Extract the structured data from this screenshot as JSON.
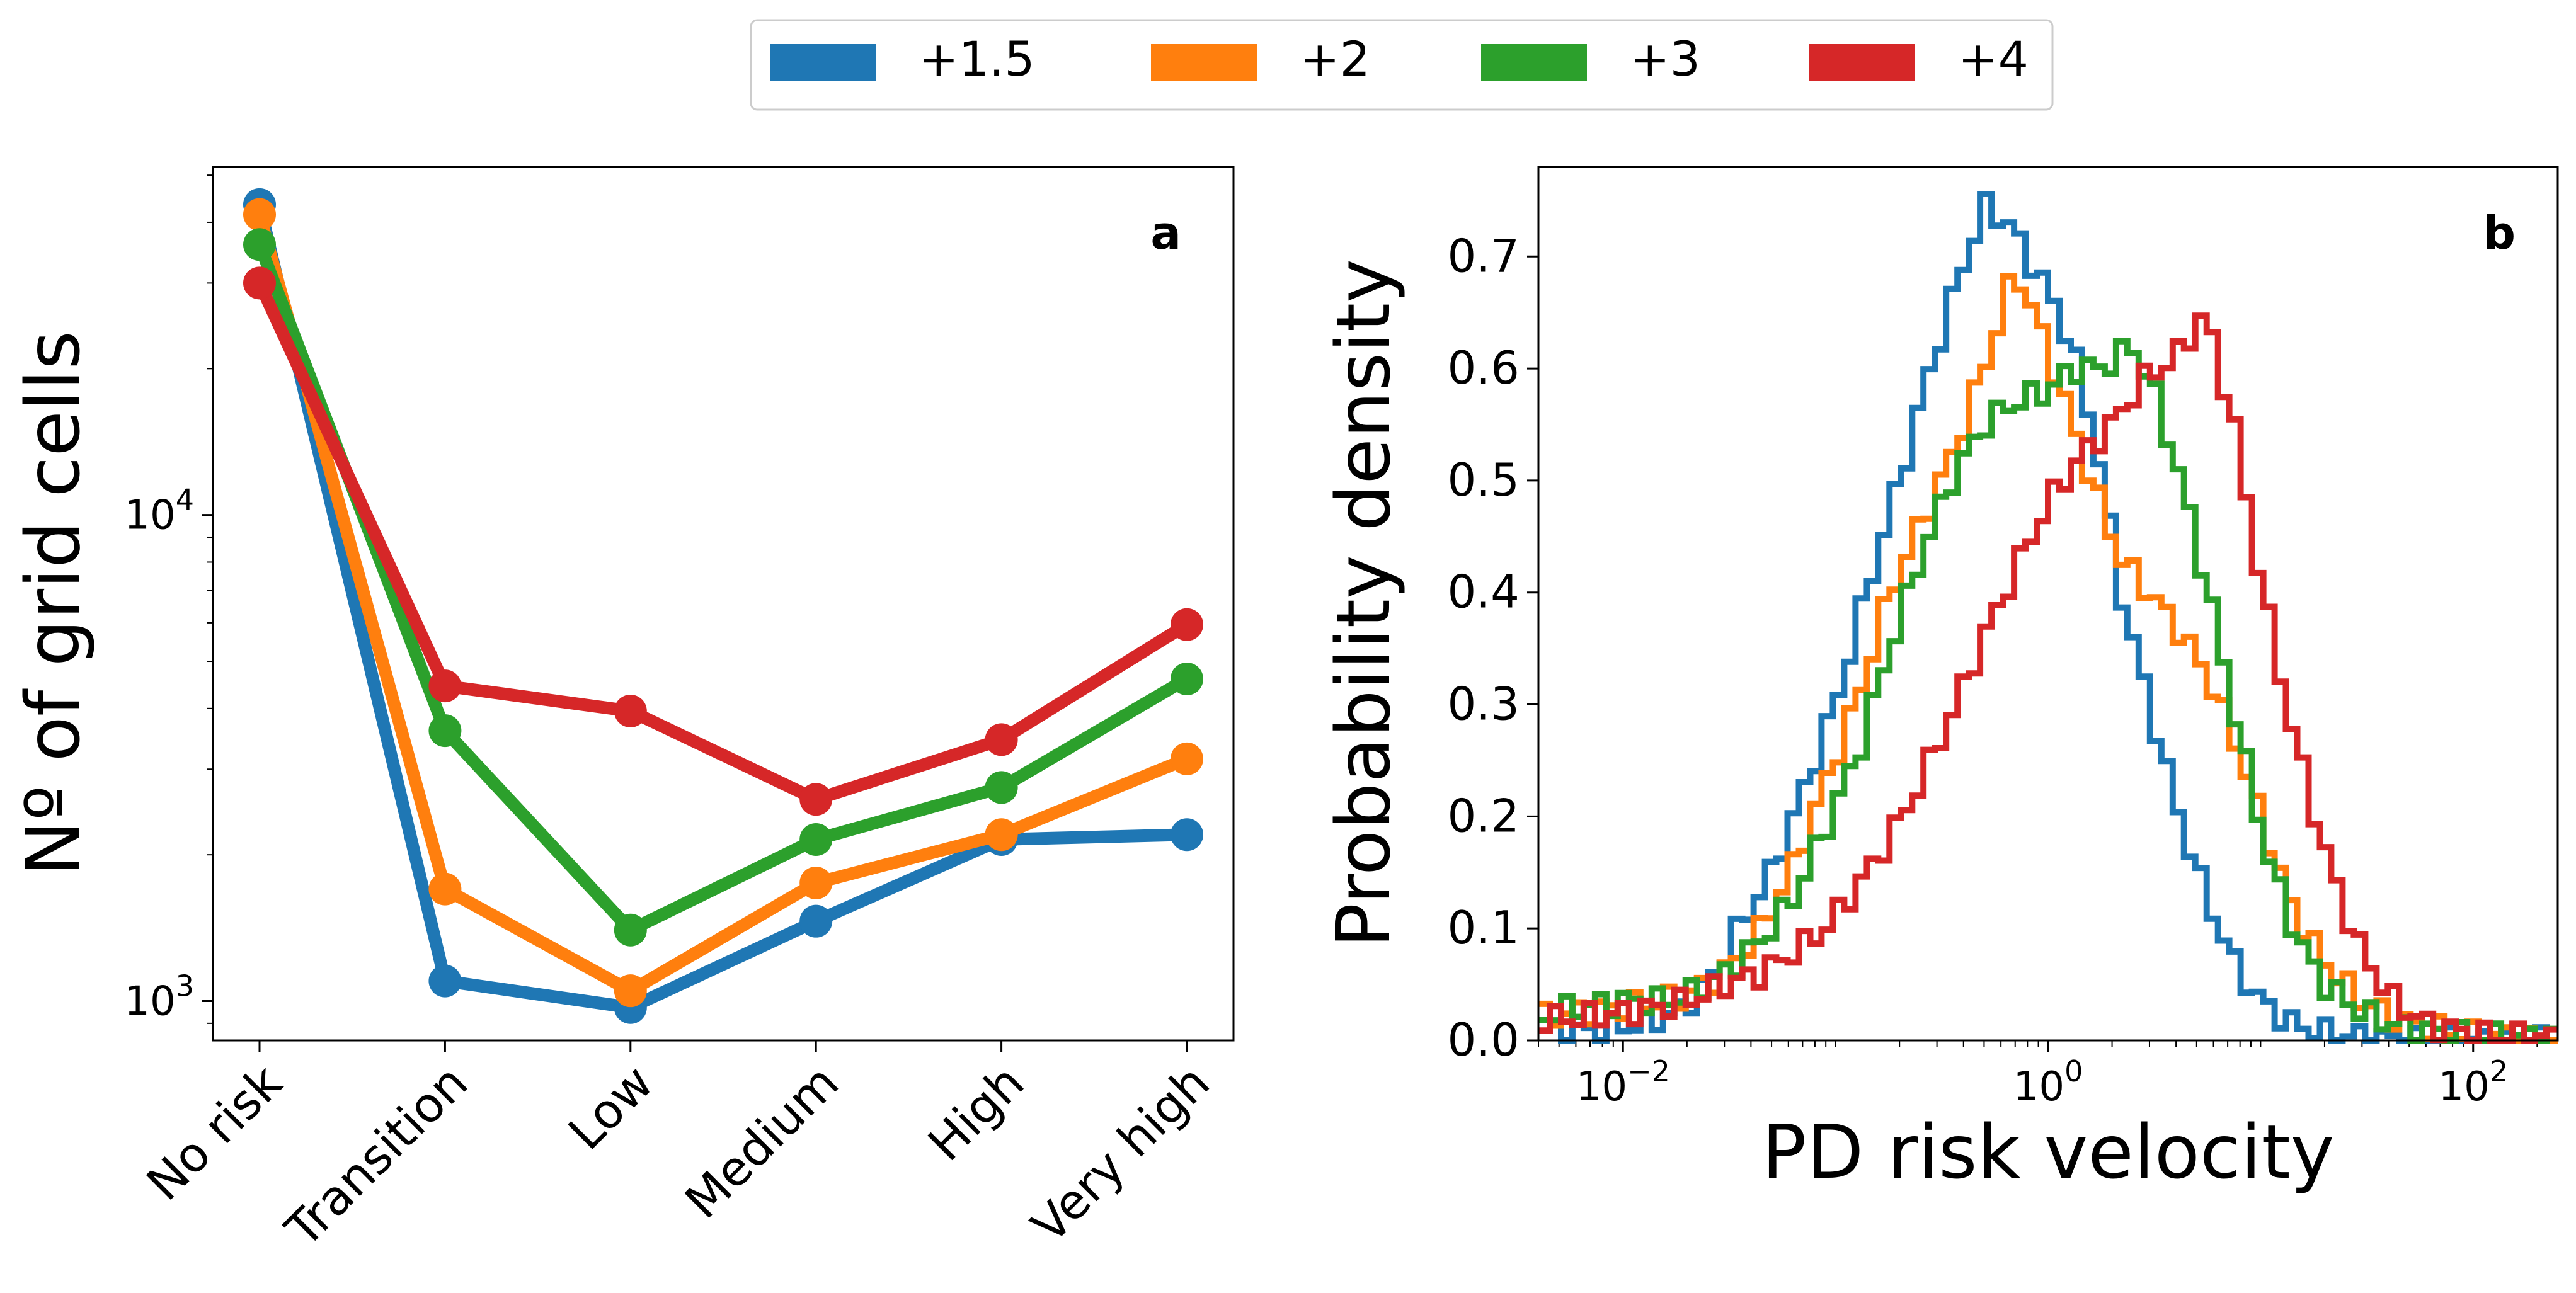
{
  "legend": {
    "entries": [
      {
        "label": "+1.5",
        "color": "#1f77b4"
      },
      {
        "label": "+2",
        "color": "#ff7f0e"
      },
      {
        "label": "+3",
        "color": "#2ca02c"
      },
      {
        "label": "+4",
        "color": "#d62728"
      }
    ]
  },
  "chart_data": [
    {
      "type": "line",
      "panel_label": "a",
      "ylabel": "Nº of grid cells",
      "xlabel": "",
      "yscale": "log",
      "ylim": [
        830,
        52000
      ],
      "categories": [
        "No risk",
        "Transition",
        "Low",
        "Medium",
        "High",
        "Very high"
      ],
      "y_ticks": [
        {
          "value": 1000,
          "base": "10",
          "exp": "3"
        },
        {
          "value": 10000,
          "base": "10",
          "exp": "4"
        }
      ],
      "series": [
        {
          "name": "+1.5",
          "color": "#1f77b4",
          "values": [
            43500,
            1100,
            970,
            1460,
            2150,
            2200
          ]
        },
        {
          "name": "+2",
          "color": "#ff7f0e",
          "values": [
            41500,
            1700,
            1050,
            1750,
            2200,
            3150
          ]
        },
        {
          "name": "+3",
          "color": "#2ca02c",
          "values": [
            36000,
            3600,
            1400,
            2150,
            2750,
            4600
          ]
        },
        {
          "name": "+4",
          "color": "#d62728",
          "values": [
            30000,
            4450,
            3950,
            2600,
            3450,
            5950
          ]
        }
      ]
    },
    {
      "type": "area",
      "style": "step histogram",
      "panel_label": "b",
      "xlabel": "PD risk velocity",
      "ylabel": "Probability density",
      "xscale": "log",
      "xlim": [
        0.004,
        250
      ],
      "ylim": [
        0,
        0.78
      ],
      "x_ticks": [
        {
          "value": 0.01,
          "base": "10",
          "exp": "−2"
        },
        {
          "value": 1,
          "base": "10",
          "exp": "0"
        },
        {
          "value": 100,
          "base": "10",
          "exp": "2"
        }
      ],
      "y_ticks": [
        0.0,
        0.1,
        0.2,
        0.3,
        0.4,
        0.5,
        0.6,
        0.7
      ],
      "series": [
        {
          "name": "+1.5",
          "color": "#1f77b4",
          "peaks": [
            [
              0.004,
              0.01
            ],
            [
              0.005,
              0.005
            ],
            [
              0.008,
              0.01
            ],
            [
              0.012,
              0.015
            ],
            [
              0.018,
              0.025
            ],
            [
              0.025,
              0.05
            ],
            [
              0.035,
              0.1
            ],
            [
              0.05,
              0.15
            ],
            [
              0.07,
              0.22
            ],
            [
              0.1,
              0.3
            ],
            [
              0.14,
              0.4
            ],
            [
              0.2,
              0.5
            ],
            [
              0.28,
              0.6
            ],
            [
              0.38,
              0.68
            ],
            [
              0.5,
              0.745
            ],
            [
              0.65,
              0.73
            ],
            [
              0.8,
              0.7
            ],
            [
              1.0,
              0.67
            ],
            [
              1.3,
              0.62
            ],
            [
              1.7,
              0.53
            ],
            [
              2.2,
              0.4
            ],
            [
              3,
              0.3
            ],
            [
              4,
              0.21
            ],
            [
              5.5,
              0.13
            ],
            [
              7.5,
              0.07
            ],
            [
              10,
              0.035
            ],
            [
              14,
              0.015
            ],
            [
              20,
              0.007
            ],
            [
              30,
              0.003
            ],
            [
              50,
              0.0
            ]
          ]
        },
        {
          "name": "+2",
          "color": "#ff7f0e",
          "peaks": [
            [
              0.004,
              0.02
            ],
            [
              0.006,
              0.025
            ],
            [
              0.01,
              0.03
            ],
            [
              0.015,
              0.035
            ],
            [
              0.02,
              0.04
            ],
            [
              0.03,
              0.06
            ],
            [
              0.045,
              0.1
            ],
            [
              0.065,
              0.16
            ],
            [
              0.09,
              0.23
            ],
            [
              0.13,
              0.31
            ],
            [
              0.18,
              0.4
            ],
            [
              0.25,
              0.46
            ],
            [
              0.35,
              0.52
            ],
            [
              0.5,
              0.6
            ],
            [
              0.7,
              0.69
            ],
            [
              0.9,
              0.64
            ],
            [
              1.2,
              0.57
            ],
            [
              1.6,
              0.5
            ],
            [
              2.2,
              0.43
            ],
            [
              3,
              0.4
            ],
            [
              4,
              0.37
            ],
            [
              5.5,
              0.33
            ],
            [
              7.5,
              0.27
            ],
            [
              10,
              0.2
            ],
            [
              14,
              0.12
            ],
            [
              20,
              0.07
            ],
            [
              30,
              0.035
            ],
            [
              50,
              0.015
            ],
            [
              100,
              0.005
            ],
            [
              250,
              0.002
            ]
          ]
        },
        {
          "name": "+3",
          "color": "#2ca02c",
          "peaks": [
            [
              0.004,
              0.02
            ],
            [
              0.006,
              0.03
            ],
            [
              0.01,
              0.035
            ],
            [
              0.015,
              0.035
            ],
            [
              0.02,
              0.04
            ],
            [
              0.03,
              0.06
            ],
            [
              0.045,
              0.09
            ],
            [
              0.065,
              0.13
            ],
            [
              0.09,
              0.19
            ],
            [
              0.13,
              0.26
            ],
            [
              0.18,
              0.35
            ],
            [
              0.25,
              0.43
            ],
            [
              0.35,
              0.5
            ],
            [
              0.5,
              0.55
            ],
            [
              0.7,
              0.57
            ],
            [
              1.0,
              0.58
            ],
            [
              1.3,
              0.6
            ],
            [
              1.8,
              0.6
            ],
            [
              2.5,
              0.62
            ],
            [
              3.3,
              0.57
            ],
            [
              4.5,
              0.48
            ],
            [
              6,
              0.38
            ],
            [
              8,
              0.27
            ],
            [
              11,
              0.16
            ],
            [
              15,
              0.09
            ],
            [
              20,
              0.05
            ],
            [
              30,
              0.025
            ],
            [
              50,
              0.01
            ],
            [
              100,
              0.004
            ],
            [
              250,
              0.002
            ]
          ]
        },
        {
          "name": "+4",
          "color": "#d62728",
          "peaks": [
            [
              0.004,
              0.02
            ],
            [
              0.006,
              0.02
            ],
            [
              0.01,
              0.025
            ],
            [
              0.015,
              0.03
            ],
            [
              0.02,
              0.035
            ],
            [
              0.03,
              0.05
            ],
            [
              0.045,
              0.06
            ],
            [
              0.065,
              0.08
            ],
            [
              0.09,
              0.1
            ],
            [
              0.13,
              0.14
            ],
            [
              0.18,
              0.18
            ],
            [
              0.25,
              0.23
            ],
            [
              0.35,
              0.29
            ],
            [
              0.5,
              0.36
            ],
            [
              0.7,
              0.42
            ],
            [
              1.0,
              0.48
            ],
            [
              1.4,
              0.52
            ],
            [
              2.0,
              0.55
            ],
            [
              2.8,
              0.59
            ],
            [
              4,
              0.61
            ],
            [
              5.5,
              0.65
            ],
            [
              7.5,
              0.55
            ],
            [
              10,
              0.41
            ],
            [
              14,
              0.28
            ],
            [
              20,
              0.17
            ],
            [
              28,
              0.09
            ],
            [
              40,
              0.04
            ],
            [
              60,
              0.015
            ],
            [
              100,
              0.005
            ],
            [
              250,
              0.002
            ]
          ]
        }
      ]
    }
  ]
}
